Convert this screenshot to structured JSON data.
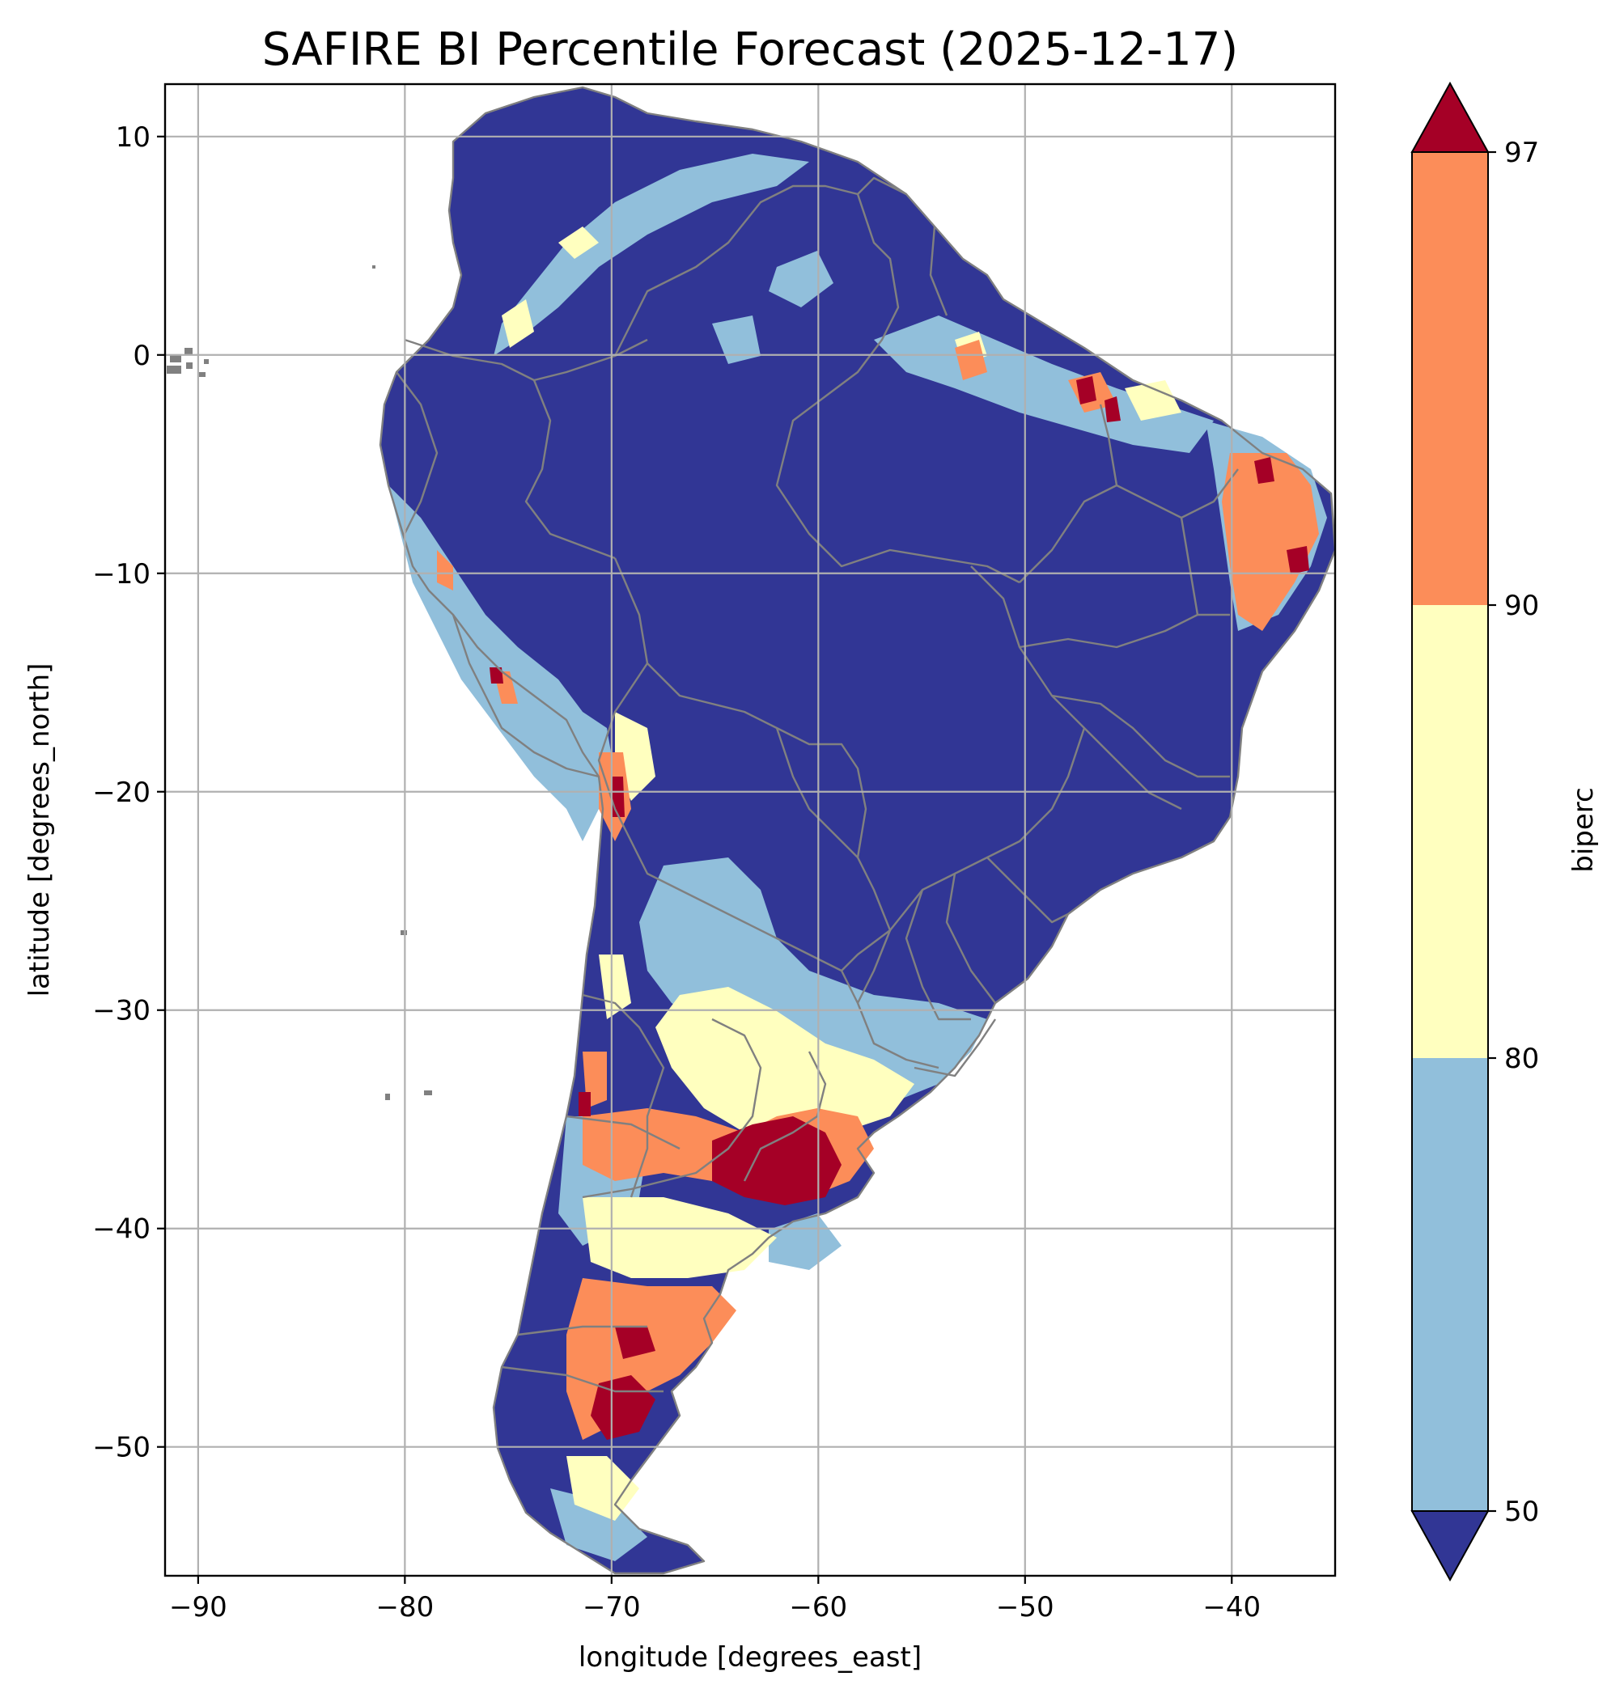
{
  "title": "SAFIRE BI Percentile Forecast (2025-12-17)",
  "xlabel": "longitude [degrees_east]",
  "ylabel": "latitude [degrees_north]",
  "map": {
    "type": "choropleth-raster",
    "region": "South America",
    "xlim": [
      -91.6,
      -35.0
    ],
    "ylim": [
      -55.9,
      12.4
    ],
    "x_ticks": [
      -90,
      -80,
      -70,
      -60,
      -50,
      -40
    ],
    "y_ticks": [
      10,
      0,
      -10,
      -20,
      -30,
      -40,
      -50
    ],
    "grid": true,
    "border_color": "#808080"
  },
  "colorbar": {
    "label": "biperc",
    "ticks": [
      50,
      80,
      90,
      97
    ],
    "extend": "both",
    "bins": [
      {
        "range": "<50",
        "color": "#313695"
      },
      {
        "range": "50-80",
        "color": "#91bfdb"
      },
      {
        "range": "80-90",
        "color": "#ffffbf"
      },
      {
        "range": "90-97",
        "color": "#fc8d59"
      },
      {
        "range": ">97",
        "color": "#a50026"
      }
    ]
  }
}
